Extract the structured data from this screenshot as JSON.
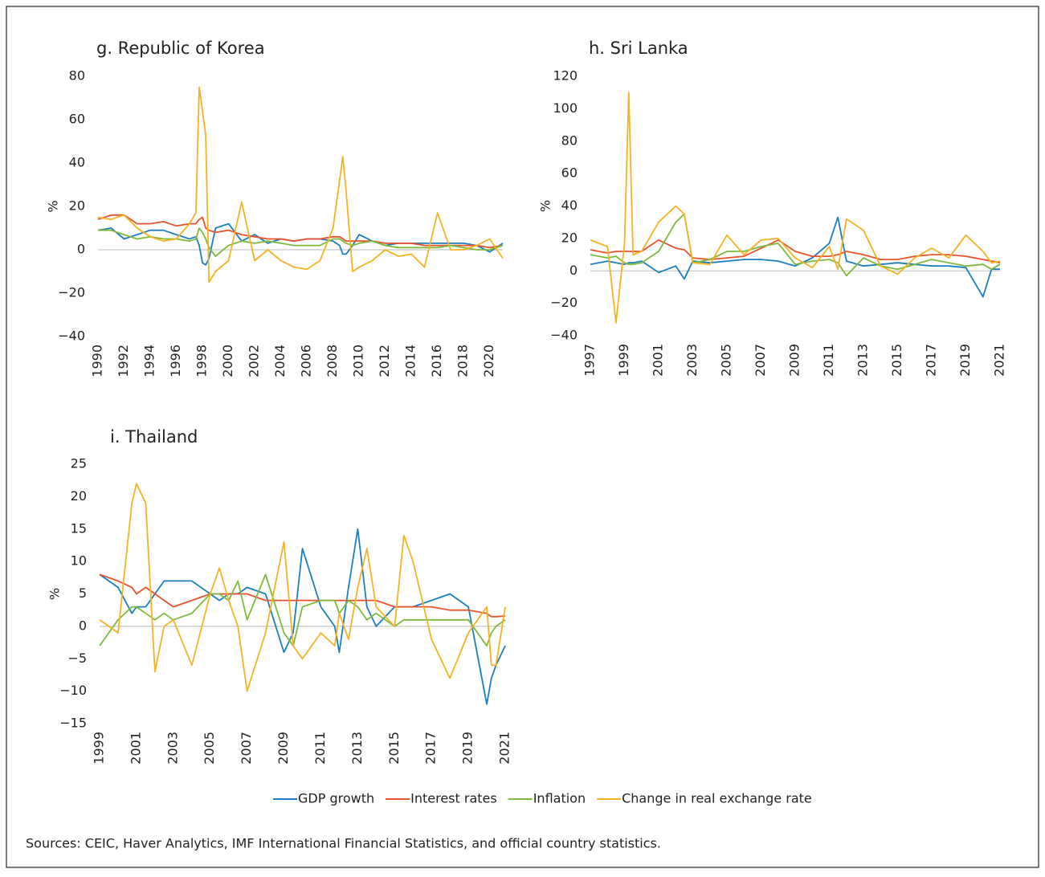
{
  "chart_data": [
    {
      "type": "line",
      "title": "g. Republic of Korea",
      "y_label": "%",
      "x": [
        1990,
        1991,
        1992,
        1993,
        1994,
        1995,
        1996,
        1997,
        1997.5,
        1997.75,
        1998,
        1998.25,
        1998.5,
        1999,
        2000,
        2001,
        2002,
        2003,
        2004,
        2005,
        2006,
        2007,
        2008,
        2008.5,
        2008.75,
        2009,
        2009.5,
        2010,
        2011,
        2012,
        2013,
        2014,
        2015,
        2016,
        2017,
        2018,
        2019,
        2020,
        2021
      ],
      "xlim": [
        1990,
        2021
      ],
      "xticks": [
        1990,
        1992,
        1994,
        1996,
        1998,
        2000,
        2002,
        2004,
        2006,
        2008,
        2010,
        2012,
        2014,
        2016,
        2018,
        2020
      ],
      "ylim": [
        -40,
        80
      ],
      "yticks": [
        {
          "value": -40,
          "label": "−40"
        },
        {
          "value": -20,
          "label": "−20"
        },
        0,
        20,
        40,
        60,
        80
      ],
      "series": [
        {
          "name": "GDP growth",
          "color": "#1a7fc1",
          "values": [
            9,
            10,
            5,
            7,
            9,
            9,
            7,
            5,
            6,
            2,
            -6,
            -7,
            -4,
            10,
            12,
            4,
            7,
            3,
            5,
            4,
            5,
            5,
            4,
            2,
            -2,
            -2,
            2,
            7,
            4,
            2,
            3,
            3,
            3,
            3,
            3,
            3,
            2,
            -1,
            3
          ]
        },
        {
          "name": "Interest rates",
          "color": "#e8532b",
          "values": [
            14,
            16,
            16,
            12,
            12,
            13,
            11,
            12,
            12,
            14,
            15,
            10,
            9,
            8,
            9,
            7,
            6,
            5,
            5,
            4,
            5,
            5,
            6,
            6,
            5,
            4,
            4,
            4,
            4,
            3,
            3,
            3,
            2,
            2,
            2,
            2,
            2,
            1,
            2
          ]
        },
        {
          "name": "Inflation",
          "color": "#7dba3c",
          "values": [
            9,
            9,
            7,
            5,
            6,
            5,
            5,
            4,
            5,
            10,
            8,
            5,
            1,
            -3,
            2,
            4,
            3,
            4,
            3,
            2,
            2,
            2,
            5,
            5,
            4,
            3,
            2,
            3,
            4,
            2,
            1,
            1,
            1,
            1,
            2,
            1,
            0,
            0,
            2
          ]
        },
        {
          "name": "Change in real exchange rate",
          "color": "#f5b324",
          "values": [
            15,
            14,
            16,
            10,
            6,
            4,
            5,
            12,
            17,
            75,
            64,
            53,
            -15,
            -10,
            -5,
            22,
            -5,
            0,
            -5,
            -8,
            -9,
            -5,
            10,
            32,
            43,
            27,
            -10,
            -8,
            -5,
            0,
            -3,
            -2,
            -8,
            17,
            0,
            0,
            2,
            5,
            -4
          ]
        }
      ]
    },
    {
      "type": "line",
      "title": "h. Sri Lanka",
      "y_label": "%",
      "x": [
        1997,
        1998,
        1998.5,
        1999,
        1999.25,
        1999.5,
        2000,
        2001,
        2002,
        2002.5,
        2003,
        2004,
        2005,
        2006,
        2007,
        2008,
        2009,
        2010,
        2011,
        2011.5,
        2012,
        2013,
        2014,
        2015,
        2016,
        2017,
        2018,
        2019,
        2020,
        2020.5,
        2021
      ],
      "xlim": [
        1997,
        2021
      ],
      "xticks": [
        1997,
        1999,
        2001,
        2003,
        2005,
        2007,
        2009,
        2011,
        2013,
        2015,
        2017,
        2019,
        2021
      ],
      "ylim": [
        -40,
        120
      ],
      "yticks": [
        {
          "value": -40,
          "label": "−40"
        },
        {
          "value": -20,
          "label": "−20"
        },
        0,
        20,
        40,
        60,
        80,
        100,
        120
      ],
      "series": [
        {
          "color": "#1a7fc1",
          "values": [
            4,
            6,
            5,
            4,
            5,
            5,
            6,
            -1,
            3,
            -5,
            6,
            5,
            6,
            7,
            7,
            6,
            3,
            8,
            17,
            33,
            6,
            3,
            4,
            5,
            4,
            3,
            3,
            2,
            -16,
            1,
            1
          ]
        },
        {
          "color": "#e8532b",
          "values": [
            13,
            11,
            12,
            12,
            12,
            12,
            12,
            19,
            14,
            13,
            8,
            7,
            8,
            9,
            14,
            19,
            12,
            9,
            9,
            10,
            12,
            10,
            7,
            7,
            9,
            10,
            10,
            9,
            7,
            6,
            5
          ]
        },
        {
          "color": "#7dba3c",
          "values": [
            10,
            8,
            9,
            5,
            4,
            4,
            5,
            12,
            30,
            35,
            5,
            7,
            12,
            12,
            15,
            17,
            4,
            6,
            7,
            5,
            -3,
            8,
            3,
            1,
            4,
            7,
            5,
            3,
            4,
            1,
            4
          ]
        },
        {
          "color": "#f5b324",
          "values": [
            19,
            15,
            -32,
            17,
            110,
            10,
            12,
            30,
            40,
            35,
            5,
            4,
            22,
            10,
            19,
            20,
            8,
            2,
            15,
            1,
            32,
            25,
            3,
            -2,
            8,
            14,
            8,
            22,
            12,
            5,
            6
          ]
        }
      ]
    },
    {
      "type": "line",
      "title": "i. Thailand",
      "y_label": "%",
      "x": [
        1999,
        2000,
        2000.75,
        2001,
        2001.5,
        2002,
        2002.5,
        2003,
        2004,
        2005,
        2005.5,
        2006,
        2006.5,
        2007,
        2008,
        2009,
        2009.5,
        2010,
        2011,
        2011.75,
        2012,
        2012.5,
        2013,
        2013.5,
        2014,
        2015,
        2015.5,
        2016,
        2017,
        2018,
        2019,
        2020,
        2020.25,
        2020.5,
        2021
      ],
      "xlim": [
        1999,
        2021
      ],
      "xticks": [
        1999,
        2001,
        2003,
        2005,
        2007,
        2009,
        2011,
        2013,
        2015,
        2017,
        2019,
        2021
      ],
      "ylim": [
        -15,
        25
      ],
      "yticks": [
        {
          "value": -15,
          "label": "−15"
        },
        {
          "value": -10,
          "label": "−10"
        },
        {
          "value": -5,
          "label": "−5"
        },
        0,
        5,
        10,
        15,
        20,
        25
      ],
      "series": [
        {
          "color": "#1a7fc1",
          "values": [
            8,
            6,
            2,
            3,
            3,
            5,
            7,
            7,
            7,
            5,
            4,
            5,
            5,
            6,
            5,
            -4,
            -1,
            12,
            3,
            0,
            -4,
            6,
            15,
            3,
            0,
            3,
            3,
            3,
            4,
            5,
            3,
            -12,
            -8,
            -6,
            -3
          ]
        },
        {
          "color": "#e8532b",
          "values": [
            8,
            7,
            6,
            5,
            6,
            5,
            4,
            3,
            4,
            5,
            5,
            5,
            5,
            5,
            4,
            4,
            4,
            4,
            4,
            4,
            4,
            4,
            4,
            4,
            4,
            3,
            3,
            3,
            3,
            2.5,
            2.5,
            2,
            1.5,
            1.5,
            1.6
          ]
        },
        {
          "color": "#7dba3c",
          "values": [
            -3,
            1,
            3,
            3,
            2,
            1,
            2,
            1,
            2,
            5,
            5,
            4,
            7,
            1,
            8,
            -1,
            -3,
            3,
            4,
            4,
            2,
            4,
            3,
            1,
            2,
            0,
            1,
            1,
            1,
            1,
            1,
            -3,
            -1,
            0,
            1
          ]
        },
        {
          "color": "#f5b324",
          "values": [
            1,
            -1,
            19,
            22,
            19,
            -7,
            0,
            1,
            -6,
            5,
            9,
            4,
            0,
            -10,
            -1,
            13,
            -3,
            -5,
            -1,
            -3,
            2,
            -2,
            6,
            12,
            3,
            0,
            14,
            10,
            -2,
            -8,
            -1,
            3,
            -6,
            -6,
            3
          ]
        }
      ]
    }
  ],
  "source": "Sources: CEIC, Haver Analytics, IMF International Financial Statistics, and official country statistics."
}
